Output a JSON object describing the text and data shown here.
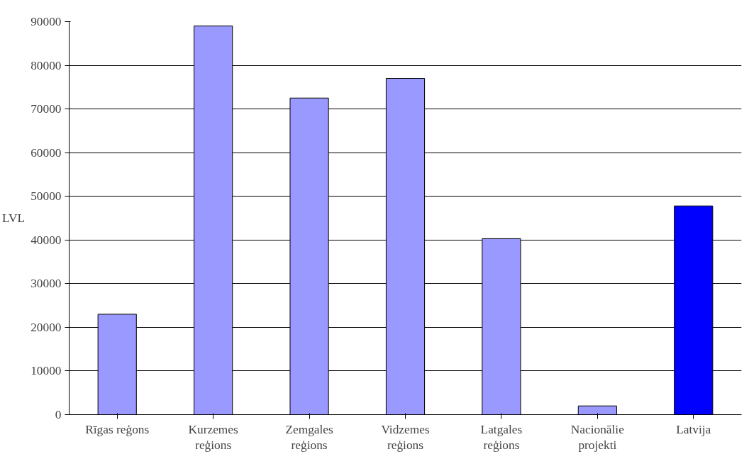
{
  "chart_data": {
    "type": "bar",
    "ylabel": "LVL",
    "categories": [
      "Rīgas reģons",
      "Kurzemes\nreģions",
      "Zemgales\nreģions",
      "Vidzemes\nreģions",
      "Latgales\nreģions",
      "Nacionālie\nprojekti",
      "Latvija"
    ],
    "values": [
      23000,
      89000,
      72500,
      77000,
      40300,
      2000,
      47800
    ],
    "colors": [
      "#9999ff",
      "#9999ff",
      "#9999ff",
      "#9999ff",
      "#9999ff",
      "#9999ff",
      "#0000ff"
    ],
    "ylim": [
      0,
      90000
    ],
    "yticks": [
      0,
      10000,
      20000,
      30000,
      40000,
      50000,
      60000,
      70000,
      80000,
      90000
    ],
    "grid": "y"
  }
}
